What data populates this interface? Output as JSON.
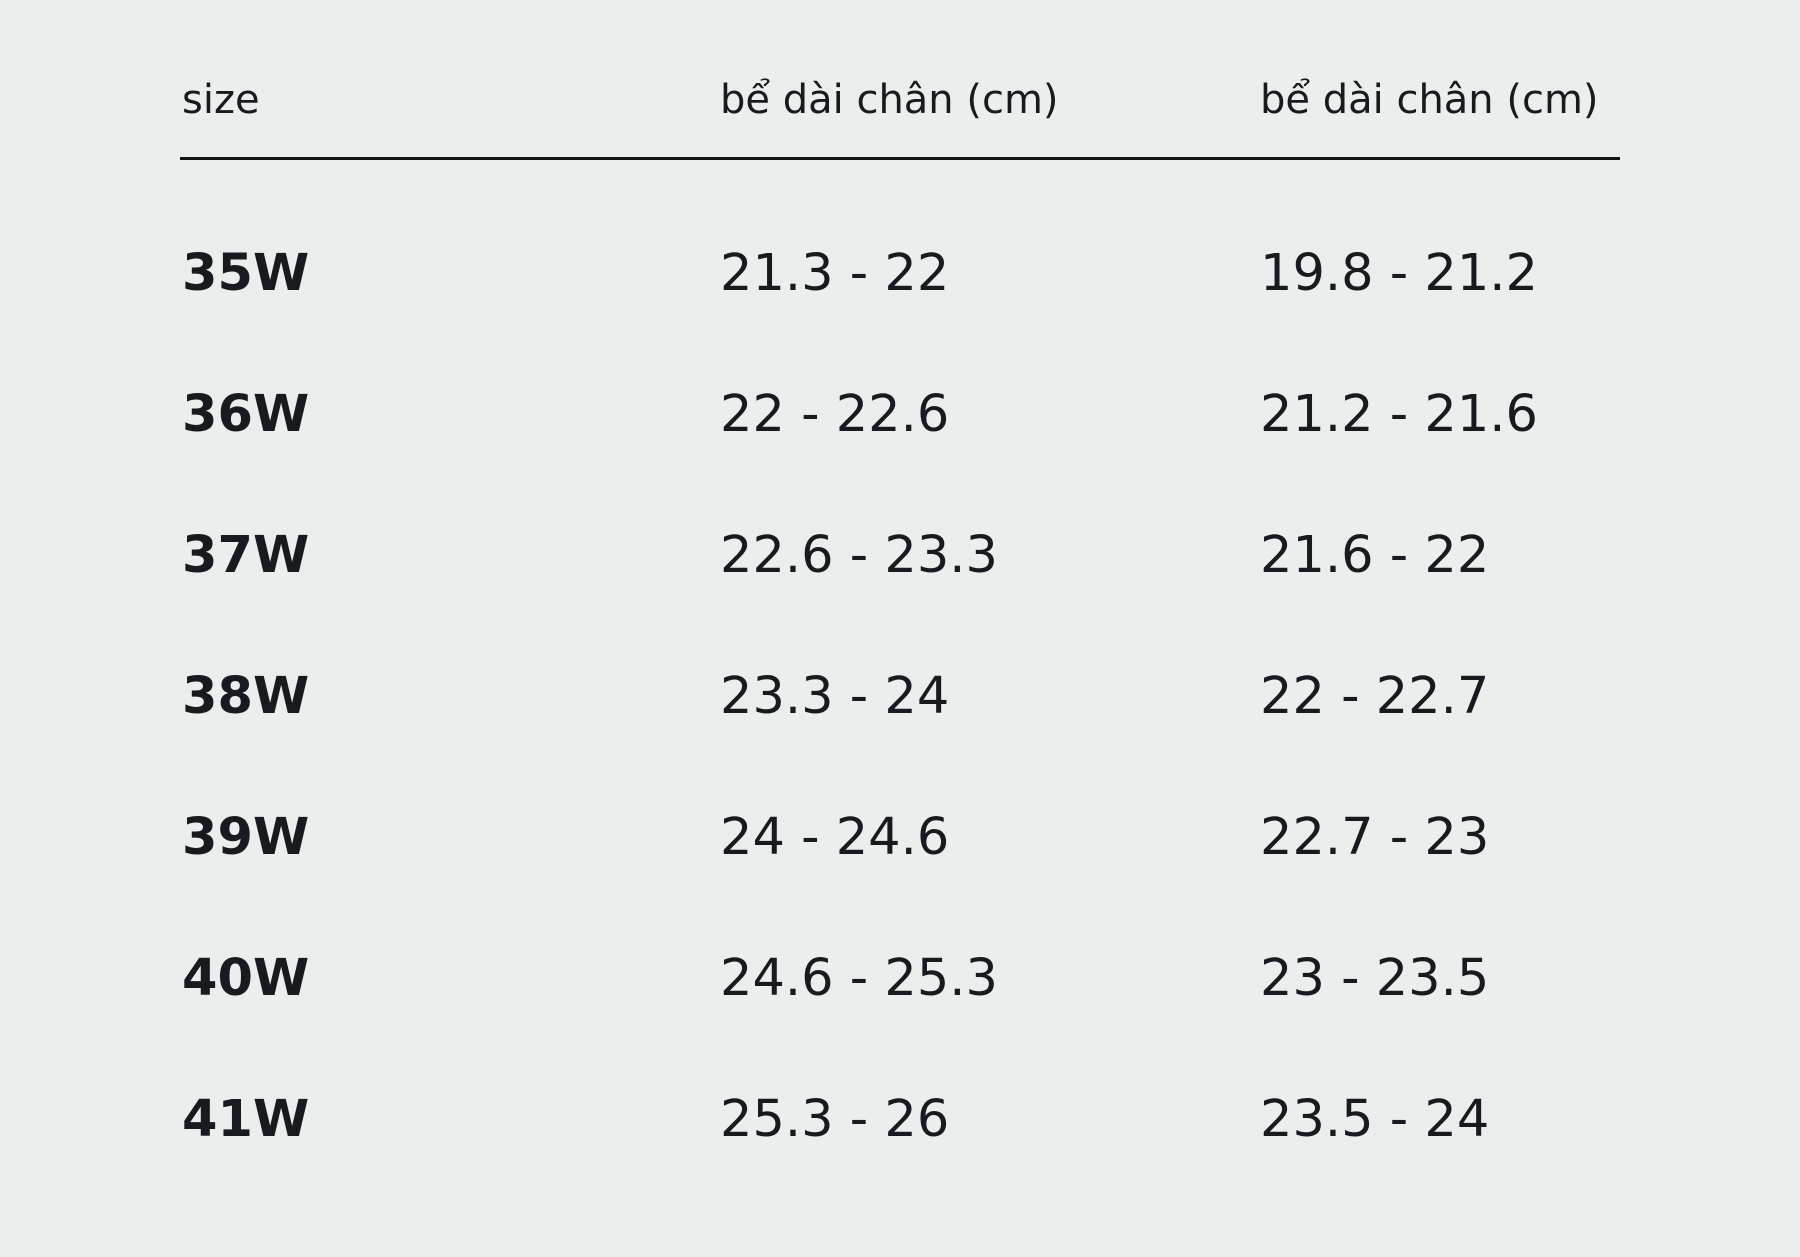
{
  "table": {
    "headers": [
      "size",
      "bể dài chân (cm)",
      "bể dài chân (cm)"
    ],
    "rows": [
      [
        "35W",
        "21.3 - 22",
        "19.8 - 21.2"
      ],
      [
        "36W",
        "22 - 22.6",
        "21.2 - 21.6"
      ],
      [
        "37W",
        "22.6 - 23.3",
        "21.6 - 22"
      ],
      [
        "38W",
        "23.3 - 24",
        "22 - 22.7"
      ],
      [
        "39W",
        "24 - 24.6",
        "22.7 - 23"
      ],
      [
        "40W",
        "24.6 - 25.3",
        "23 - 23.5"
      ],
      [
        "41W",
        "25.3 - 26",
        "23.5 - 24"
      ]
    ]
  },
  "colors": {
    "background": "#eceeed",
    "text": "#171b20",
    "divider": "#111417"
  }
}
